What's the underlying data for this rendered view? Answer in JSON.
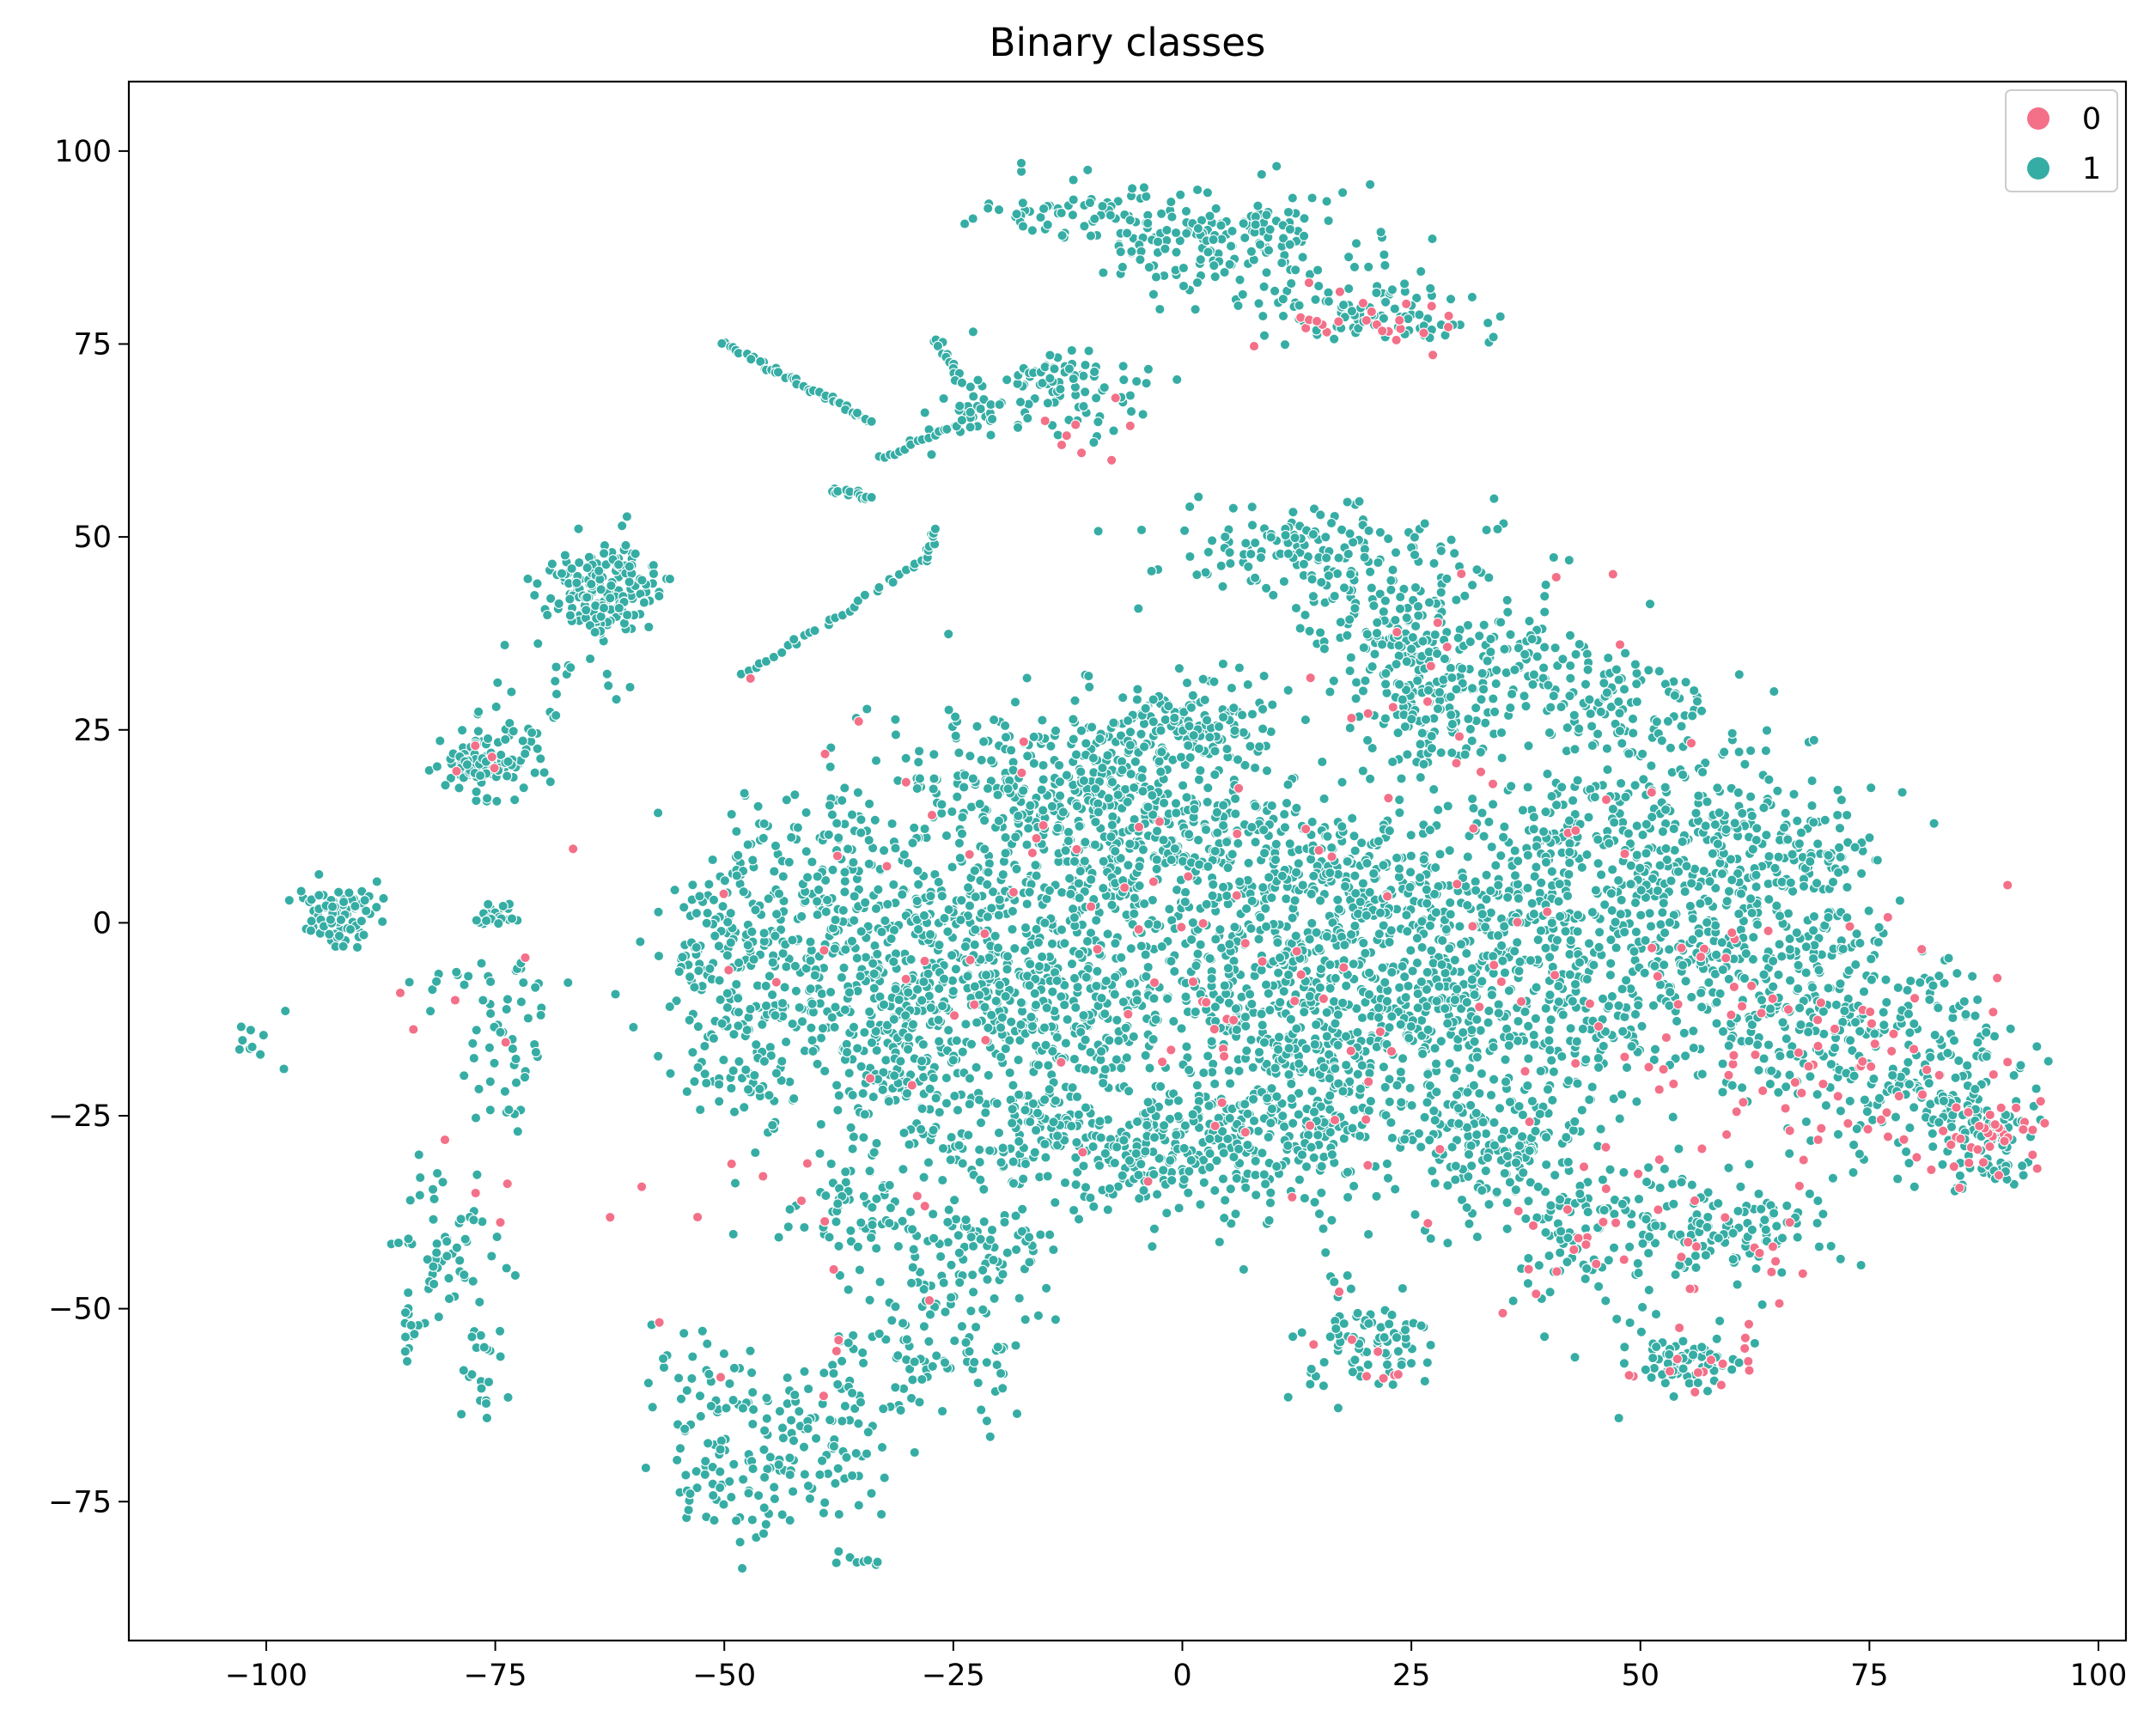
{
  "chart_data": {
    "type": "scatter",
    "title": "Binary classes",
    "xlabel": "",
    "ylabel": "",
    "xlim": [
      -115,
      103
    ],
    "ylim": [
      -93,
      109
    ],
    "xticks": [
      -100,
      -75,
      -50,
      -25,
      0,
      25,
      50,
      75,
      100
    ],
    "xtick_labels": [
      "−100",
      "−75",
      "−50",
      "−25",
      "0",
      "25",
      "50",
      "75",
      "100"
    ],
    "yticks": [
      -75,
      -50,
      -25,
      0,
      25,
      50,
      75,
      100
    ],
    "ytick_labels": [
      "−75",
      "−50",
      "−25",
      "0",
      "25",
      "50",
      "75",
      "100"
    ],
    "grid": false,
    "legend": {
      "placement": "top-right",
      "entries": [
        {
          "label": "0",
          "color": "#f37088"
        },
        {
          "label": "1",
          "color": "#36ada4"
        }
      ]
    },
    "colors": {
      "class_0": "#f37088",
      "class_1": "#36ada4"
    },
    "series": [
      {
        "name": "1",
        "color": "#36ada4",
        "clusters": [
          {
            "cx": -63,
            "cy": 43,
            "sx": 3.0,
            "sy": 3.5,
            "n": 190,
            "seed": 11
          },
          {
            "cx": -76,
            "cy": 21,
            "sx": 2.4,
            "sy": 2.3,
            "n": 110,
            "seed": 12
          },
          {
            "cx": -92,
            "cy": 1,
            "sx": 2.2,
            "sy": 2.0,
            "n": 80,
            "seed": 13
          },
          {
            "cx": -75,
            "cy": 1,
            "sx": 1.0,
            "sy": 0.9,
            "n": 28,
            "seed": 14
          },
          {
            "cx": -12,
            "cy": 92,
            "sx": 5.0,
            "sy": 2.2,
            "n": 60,
            "seed": 15
          },
          {
            "cx": 5,
            "cy": 88,
            "sx": 7.0,
            "sy": 4.0,
            "n": 170,
            "seed": 16
          },
          {
            "cx": 20,
            "cy": 79,
            "sx": 6.5,
            "sy": 2.2,
            "n": 90,
            "seed": 17
          },
          {
            "cx": -12,
            "cy": 69,
            "sx": 5.0,
            "sy": 2.7,
            "n": 80,
            "seed": 18
          },
          {
            "cx": -23,
            "cy": 65,
            "sx": 3.5,
            "sy": 1.5,
            "n": 24,
            "seed": 19
          },
          {
            "cx": 10,
            "cy": 49,
            "sx": 6.5,
            "sy": 3.0,
            "n": 90,
            "seed": 20
          },
          {
            "cx": 19,
            "cy": 42,
            "sx": 4.5,
            "sy": 6.0,
            "n": 110,
            "seed": 21
          },
          {
            "cx": 28,
            "cy": 38,
            "sx": 5.0,
            "sy": 7.0,
            "n": 140,
            "seed": 22
          },
          {
            "cx": 40,
            "cy": 32,
            "sx": 6.0,
            "sy": 5.0,
            "n": 110,
            "seed": 23
          },
          {
            "cx": 27,
            "cy": 26,
            "sx": 4.0,
            "sy": 3.5,
            "n": 80,
            "seed": 24
          },
          {
            "cx": 50,
            "cy": 26,
            "sx": 5.0,
            "sy": 3.5,
            "n": 70,
            "seed": 25
          },
          {
            "cx": -48,
            "cy": -8,
            "sx": 4.5,
            "sy": 9.0,
            "n": 240,
            "seed": 26
          },
          {
            "cx": -38,
            "cy": 6,
            "sx": 6.0,
            "sy": 7.0,
            "n": 160,
            "seed": 27
          },
          {
            "cx": -33,
            "cy": -10,
            "sx": 5.0,
            "sy": 8.0,
            "n": 170,
            "seed": 28
          },
          {
            "cx": -22,
            "cy": -4,
            "sx": 6.0,
            "sy": 8.0,
            "n": 220,
            "seed": 29
          },
          {
            "cx": -20,
            "cy": 17,
            "sx": 6.0,
            "sy": 6.5,
            "n": 150,
            "seed": 30
          },
          {
            "cx": -10,
            "cy": 6,
            "sx": 6.0,
            "sy": 7.0,
            "n": 200,
            "seed": 31
          },
          {
            "cx": -8,
            "cy": 20,
            "sx": 6.0,
            "sy": 5.0,
            "n": 150,
            "seed": 32
          },
          {
            "cx": 2,
            "cy": 10,
            "sx": 6.0,
            "sy": 7.0,
            "n": 220,
            "seed": 33
          },
          {
            "cx": 2,
            "cy": 26,
            "sx": 5.0,
            "sy": 3.5,
            "n": 110,
            "seed": 34
          },
          {
            "cx": -10,
            "cy": -12,
            "sx": 6.0,
            "sy": 4.0,
            "n": 160,
            "seed": 35
          },
          {
            "cx": 9,
            "cy": -7,
            "sx": 7.0,
            "sy": 8.0,
            "n": 250,
            "seed": 36
          },
          {
            "cx": 16,
            "cy": 6,
            "sx": 5.5,
            "sy": 6.0,
            "n": 140,
            "seed": 37
          },
          {
            "cx": 27,
            "cy": 0,
            "sx": 7.0,
            "sy": 8.0,
            "n": 230,
            "seed": 38
          },
          {
            "cx": 2,
            "cy": -28,
            "sx": 7.0,
            "sy": 5.0,
            "n": 210,
            "seed": 39
          },
          {
            "cx": 14,
            "cy": -23,
            "sx": 5.0,
            "sy": 8.0,
            "n": 160,
            "seed": 40
          },
          {
            "cx": 20,
            "cy": -13,
            "sx": 6.0,
            "sy": 7.0,
            "n": 160,
            "seed": 41
          },
          {
            "cx": -12,
            "cy": -28,
            "sx": 6.5,
            "sy": 4.5,
            "n": 170,
            "seed": 42
          },
          {
            "cx": -28,
            "cy": -20,
            "sx": 6.0,
            "sy": 7.0,
            "n": 170,
            "seed": 43
          },
          {
            "cx": -22,
            "cy": -42,
            "sx": 4.5,
            "sy": 3.0,
            "n": 70,
            "seed": 44
          },
          {
            "cx": -35,
            "cy": -38,
            "sx": 4.0,
            "sy": 4.0,
            "n": 60,
            "seed": 45
          },
          {
            "cx": 37,
            "cy": -10,
            "sx": 7.0,
            "sy": 8.0,
            "n": 230,
            "seed": 46
          },
          {
            "cx": 35,
            "cy": -28,
            "sx": 6.0,
            "sy": 5.0,
            "n": 180,
            "seed": 47
          },
          {
            "cx": 45,
            "cy": 8,
            "sx": 7.0,
            "sy": 6.0,
            "n": 200,
            "seed": 48
          },
          {
            "cx": 55,
            "cy": -6,
            "sx": 7.0,
            "sy": 8.0,
            "n": 230,
            "seed": 49
          },
          {
            "cx": 60,
            "cy": 10,
            "sx": 6.0,
            "sy": 5.0,
            "n": 150,
            "seed": 50
          },
          {
            "cx": 70,
            "cy": -12,
            "sx": 6.0,
            "sy": 7.0,
            "n": 190,
            "seed": 51
          },
          {
            "cx": 68,
            "cy": 8,
            "sx": 4.0,
            "sy": 5.0,
            "n": 80,
            "seed": 52
          },
          {
            "cx": 82,
            "cy": -20,
            "sx": 5.0,
            "sy": 6.0,
            "n": 150,
            "seed": 53
          },
          {
            "cx": 88,
            "cy": -28,
            "sx": 3.0,
            "sy": 4.0,
            "n": 80,
            "seed": 54
          },
          {
            "cx": 60,
            "cy": -40,
            "sx": 5.0,
            "sy": 3.0,
            "n": 110,
            "seed": 55
          },
          {
            "cx": 44,
            "cy": -40,
            "sx": 5.0,
            "sy": 5.0,
            "n": 110,
            "seed": 56
          },
          {
            "cx": 20,
            "cy": -54,
            "sx": 4.0,
            "sy": 3.5,
            "n": 80,
            "seed": 57
          },
          {
            "cx": 55,
            "cy": -57,
            "sx": 4.0,
            "sy": 2.0,
            "n": 70,
            "seed": 58
          },
          {
            "cx": -28,
            "cy": -55,
            "sx": 5.0,
            "sy": 6.0,
            "n": 110,
            "seed": 59
          },
          {
            "cx": -40,
            "cy": -67,
            "sx": 5.0,
            "sy": 5.0,
            "n": 90,
            "seed": 60
          },
          {
            "cx": -50,
            "cy": -72,
            "sx": 3.0,
            "sy": 4.0,
            "n": 60,
            "seed": 61
          },
          {
            "cx": -52,
            "cy": -60,
            "sx": 2.5,
            "sy": 4.0,
            "n": 40,
            "seed": 62
          },
          {
            "cx": -80,
            "cy": -42,
            "sx": 3.0,
            "sy": 6.0,
            "n": 60,
            "seed": 63
          },
          {
            "cx": -76,
            "cy": -58,
            "sx": 1.5,
            "sy": 4.0,
            "n": 20,
            "seed": 64
          },
          {
            "cx": -74,
            "cy": -18,
            "sx": 2.5,
            "sy": 6.0,
            "n": 40,
            "seed": 65
          },
          {
            "cx": -78,
            "cy": -8,
            "sx": 4.0,
            "sy": 3.0,
            "n": 20,
            "seed": 66
          },
          {
            "cx": -101,
            "cy": -15,
            "sx": 2.0,
            "sy": 2.0,
            "n": 10,
            "seed": 67
          },
          {
            "cx": -84,
            "cy": -53,
            "sx": 1.0,
            "sy": 2.0,
            "n": 10,
            "seed": 68
          },
          {
            "cx": -70,
            "cy": 28,
            "sx": 4.0,
            "sy": 5.0,
            "n": 20,
            "seed": 69
          }
        ],
        "arcs": [
          {
            "from": [
              -50,
              75
            ],
            "to": [
              -34,
              65
            ],
            "n": 45
          },
          {
            "from": [
              -38,
              56
            ],
            "to": [
              -34,
              55
            ],
            "n": 14
          },
          {
            "from": [
              -48,
              32
            ],
            "to": [
              -28,
              47
            ],
            "n": 30
          },
          {
            "from": [
              -28,
              47
            ],
            "to": [
              -27,
              51
            ],
            "n": 10
          },
          {
            "from": [
              -33,
              60
            ],
            "to": [
              -24,
              65
            ],
            "n": 18
          },
          {
            "from": [
              -27,
              76
            ],
            "to": [
              -24,
              70
            ],
            "n": 14
          },
          {
            "from": [
              -18,
              71
            ],
            "to": [
              -14,
              72
            ],
            "n": 10
          },
          {
            "from": [
              -38,
              -82
            ],
            "to": [
              -33,
              -83
            ],
            "n": 8
          }
        ]
      },
      {
        "name": "0",
        "color": "#f37088",
        "clusters": [
          {
            "cx": 20,
            "cy": 78,
            "sx": 6.0,
            "sy": 2.0,
            "n": 25,
            "seed": 101
          },
          {
            "cx": -10,
            "cy": 66,
            "sx": 4.0,
            "sy": 3.0,
            "n": 8,
            "seed": 102
          },
          {
            "cx": -20,
            "cy": 5,
            "sx": 15.0,
            "sy": 10.0,
            "n": 35,
            "seed": 103
          },
          {
            "cx": 10,
            "cy": -15,
            "sx": 15.0,
            "sy": 12.0,
            "n": 40,
            "seed": 104
          },
          {
            "cx": 45,
            "cy": -10,
            "sx": 15.0,
            "sy": 15.0,
            "n": 55,
            "seed": 105
          },
          {
            "cx": 75,
            "cy": -20,
            "sx": 10.0,
            "sy": 8.0,
            "n": 60,
            "seed": 106
          },
          {
            "cx": 88,
            "cy": -28,
            "sx": 3.0,
            "sy": 3.0,
            "n": 30,
            "seed": 107
          },
          {
            "cx": 58,
            "cy": -45,
            "sx": 6.0,
            "sy": 5.0,
            "n": 20,
            "seed": 108
          },
          {
            "cx": 55,
            "cy": -57,
            "sx": 4.0,
            "sy": 2.0,
            "n": 12,
            "seed": 109
          },
          {
            "cx": 30,
            "cy": 30,
            "sx": 10.0,
            "sy": 10.0,
            "n": 20,
            "seed": 110
          },
          {
            "cx": -40,
            "cy": -40,
            "sx": 15.0,
            "sy": 15.0,
            "n": 20,
            "seed": 111
          },
          {
            "cx": -78,
            "cy": -25,
            "sx": 5.0,
            "sy": 15.0,
            "n": 8,
            "seed": 112
          },
          {
            "cx": -76,
            "cy": 21,
            "sx": 2.0,
            "sy": 2.0,
            "n": 4,
            "seed": 113
          },
          {
            "cx": 44,
            "cy": -40,
            "sx": 5.0,
            "sy": 5.0,
            "n": 15,
            "seed": 114
          },
          {
            "cx": 20,
            "cy": -54,
            "sx": 4.0,
            "sy": 3.0,
            "n": 8,
            "seed": 115
          }
        ],
        "arcs": []
      }
    ]
  }
}
